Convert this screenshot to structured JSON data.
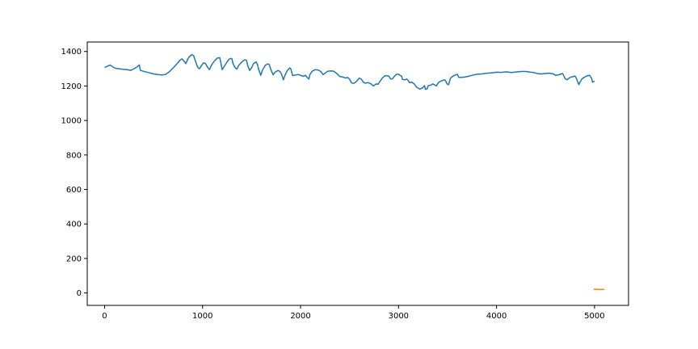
{
  "chart_data": {
    "type": "line",
    "title": "",
    "xlabel": "",
    "ylabel": "",
    "xlim": [
      -177,
      5347
    ],
    "ylim": [
      -72,
      1455
    ],
    "grid": false,
    "legend": "none",
    "x_ticks": [
      0,
      1000,
      2000,
      3000,
      4000,
      5000
    ],
    "y_ticks": [
      0,
      200,
      400,
      600,
      800,
      1000,
      1200,
      1400
    ],
    "series": [
      {
        "color": "#1f77b4",
        "points": [
          [
            0,
            1308
          ],
          [
            30,
            1315
          ],
          [
            55,
            1322
          ],
          [
            80,
            1312
          ],
          [
            110,
            1303
          ],
          [
            150,
            1299
          ],
          [
            200,
            1296
          ],
          [
            240,
            1294
          ],
          [
            265,
            1290
          ],
          [
            300,
            1300
          ],
          [
            330,
            1310
          ],
          [
            345,
            1318
          ],
          [
            355,
            1322
          ],
          [
            365,
            1292
          ],
          [
            380,
            1288
          ],
          [
            410,
            1283
          ],
          [
            450,
            1278
          ],
          [
            500,
            1270
          ],
          [
            540,
            1266
          ],
          [
            580,
            1264
          ],
          [
            620,
            1266
          ],
          [
            660,
            1282
          ],
          [
            700,
            1305
          ],
          [
            740,
            1330
          ],
          [
            770,
            1350
          ],
          [
            790,
            1357
          ],
          [
            810,
            1345
          ],
          [
            830,
            1330
          ],
          [
            850,
            1358
          ],
          [
            870,
            1372
          ],
          [
            890,
            1382
          ],
          [
            910,
            1375
          ],
          [
            930,
            1340
          ],
          [
            950,
            1308
          ],
          [
            970,
            1300
          ],
          [
            990,
            1320
          ],
          [
            1010,
            1334
          ],
          [
            1030,
            1330
          ],
          [
            1050,
            1310
          ],
          [
            1070,
            1295
          ],
          [
            1090,
            1320
          ],
          [
            1120,
            1345
          ],
          [
            1150,
            1362
          ],
          [
            1175,
            1364
          ],
          [
            1185,
            1340
          ],
          [
            1200,
            1295
          ],
          [
            1220,
            1312
          ],
          [
            1250,
            1340
          ],
          [
            1270,
            1355
          ],
          [
            1290,
            1360
          ],
          [
            1300,
            1358
          ],
          [
            1310,
            1330
          ],
          [
            1330,
            1308
          ],
          [
            1350,
            1298
          ],
          [
            1370,
            1320
          ],
          [
            1400,
            1340
          ],
          [
            1430,
            1352
          ],
          [
            1450,
            1348
          ],
          [
            1460,
            1320
          ],
          [
            1480,
            1290
          ],
          [
            1500,
            1305
          ],
          [
            1520,
            1330
          ],
          [
            1545,
            1340
          ],
          [
            1560,
            1325
          ],
          [
            1575,
            1290
          ],
          [
            1595,
            1262
          ],
          [
            1610,
            1290
          ],
          [
            1640,
            1320
          ],
          [
            1665,
            1328
          ],
          [
            1680,
            1325
          ],
          [
            1700,
            1290
          ],
          [
            1720,
            1265
          ],
          [
            1740,
            1280
          ],
          [
            1770,
            1290
          ],
          [
            1790,
            1284
          ],
          [
            1805,
            1270
          ],
          [
            1825,
            1236
          ],
          [
            1840,
            1260
          ],
          [
            1865,
            1290
          ],
          [
            1890,
            1305
          ],
          [
            1900,
            1300
          ],
          [
            1920,
            1260
          ],
          [
            1950,
            1264
          ],
          [
            1980,
            1266
          ],
          [
            2000,
            1262
          ],
          [
            2025,
            1256
          ],
          [
            2050,
            1262
          ],
          [
            2070,
            1248
          ],
          [
            2085,
            1240
          ],
          [
            2095,
            1266
          ],
          [
            2120,
            1286
          ],
          [
            2150,
            1295
          ],
          [
            2180,
            1293
          ],
          [
            2210,
            1282
          ],
          [
            2230,
            1266
          ],
          [
            2250,
            1274
          ],
          [
            2275,
            1285
          ],
          [
            2310,
            1288
          ],
          [
            2340,
            1285
          ],
          [
            2375,
            1270
          ],
          [
            2400,
            1255
          ],
          [
            2430,
            1252
          ],
          [
            2460,
            1246
          ],
          [
            2480,
            1250
          ],
          [
            2500,
            1240
          ],
          [
            2520,
            1218
          ],
          [
            2545,
            1215
          ],
          [
            2570,
            1226
          ],
          [
            2600,
            1246
          ],
          [
            2620,
            1240
          ],
          [
            2640,
            1222
          ],
          [
            2660,
            1216
          ],
          [
            2690,
            1220
          ],
          [
            2720,
            1212
          ],
          [
            2745,
            1200
          ],
          [
            2770,
            1212
          ],
          [
            2790,
            1210
          ],
          [
            2815,
            1230
          ],
          [
            2840,
            1250
          ],
          [
            2865,
            1260
          ],
          [
            2900,
            1258
          ],
          [
            2920,
            1240
          ],
          [
            2940,
            1243
          ],
          [
            2960,
            1258
          ],
          [
            2980,
            1268
          ],
          [
            3000,
            1268
          ],
          [
            3020,
            1260
          ],
          [
            3030,
            1258
          ],
          [
            3040,
            1238
          ],
          [
            3060,
            1236
          ],
          [
            3085,
            1240
          ],
          [
            3100,
            1230
          ],
          [
            3110,
            1220
          ],
          [
            3135,
            1222
          ],
          [
            3160,
            1212
          ],
          [
            3175,
            1200
          ],
          [
            3185,
            1192
          ],
          [
            3200,
            1188
          ],
          [
            3215,
            1182
          ],
          [
            3235,
            1186
          ],
          [
            3250,
            1192
          ],
          [
            3265,
            1202
          ],
          [
            3275,
            1180
          ],
          [
            3290,
            1183
          ],
          [
            3305,
            1202
          ],
          [
            3330,
            1205
          ],
          [
            3350,
            1212
          ],
          [
            3370,
            1206
          ],
          [
            3385,
            1200
          ],
          [
            3410,
            1222
          ],
          [
            3440,
            1230
          ],
          [
            3470,
            1236
          ],
          [
            3480,
            1230
          ],
          [
            3495,
            1212
          ],
          [
            3510,
            1207
          ],
          [
            3530,
            1245
          ],
          [
            3550,
            1255
          ],
          [
            3580,
            1264
          ],
          [
            3600,
            1268
          ],
          [
            3615,
            1250
          ],
          [
            3650,
            1250
          ],
          [
            3700,
            1254
          ],
          [
            3750,
            1262
          ],
          [
            3800,
            1268
          ],
          [
            3850,
            1270
          ],
          [
            3900,
            1274
          ],
          [
            3950,
            1276
          ],
          [
            4000,
            1280
          ],
          [
            4050,
            1279
          ],
          [
            4100,
            1282
          ],
          [
            4150,
            1278
          ],
          [
            4200,
            1281
          ],
          [
            4250,
            1284
          ],
          [
            4300,
            1284
          ],
          [
            4350,
            1280
          ],
          [
            4380,
            1278
          ],
          [
            4420,
            1272
          ],
          [
            4460,
            1270
          ],
          [
            4500,
            1273
          ],
          [
            4540,
            1274
          ],
          [
            4580,
            1270
          ],
          [
            4600,
            1262
          ],
          [
            4630,
            1264
          ],
          [
            4660,
            1270
          ],
          [
            4675,
            1272
          ],
          [
            4690,
            1255
          ],
          [
            4700,
            1242
          ],
          [
            4720,
            1236
          ],
          [
            4750,
            1250
          ],
          [
            4780,
            1254
          ],
          [
            4800,
            1258
          ],
          [
            4815,
            1244
          ],
          [
            4830,
            1222
          ],
          [
            4840,
            1208
          ],
          [
            4855,
            1225
          ],
          [
            4870,
            1240
          ],
          [
            4900,
            1252
          ],
          [
            4930,
            1260
          ],
          [
            4950,
            1262
          ],
          [
            4970,
            1244
          ],
          [
            4980,
            1222
          ],
          [
            4990,
            1225
          ],
          [
            5000,
            1228
          ]
        ]
      },
      {
        "color": "#ff7f0e",
        "points": [
          [
            4990,
            21
          ],
          [
            5030,
            21
          ],
          [
            5060,
            20
          ],
          [
            5100,
            21
          ]
        ]
      }
    ]
  }
}
